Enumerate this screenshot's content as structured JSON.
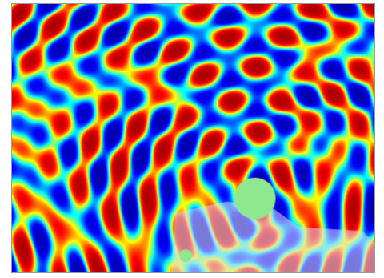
{
  "image": {
    "subject": "wave-interference-field",
    "colormap": [
      "#00007f",
      "#0000ff",
      "#00ffff",
      "#7fff7f",
      "#ffff00",
      "#ff0000",
      "#7f0000"
    ],
    "marker_color": "#8fe88f",
    "overlay_color": "#d8d8f0"
  }
}
